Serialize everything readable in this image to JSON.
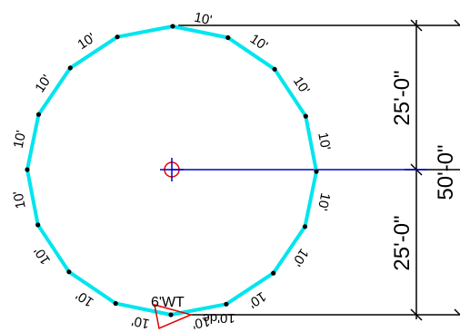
{
  "drawing": {
    "segment_length_label": "10'",
    "segment_count": 16,
    "colors": {
      "polygon": "#00e5ee",
      "vertex": "#000000",
      "radius_line": "#0000cc",
      "center_marker": "#e00000",
      "center_cross": "#0000cc",
      "dimension_lines": "#000000",
      "gate_marker": "#e00000"
    },
    "center_icon": "crosshair-circle-icon",
    "gate_tag": "6'WT",
    "gate_reversed_text": "10'dc"
  },
  "dimensions": {
    "upper": "25'-0\"",
    "lower": "25'-0\"",
    "total": "50'-0\""
  }
}
